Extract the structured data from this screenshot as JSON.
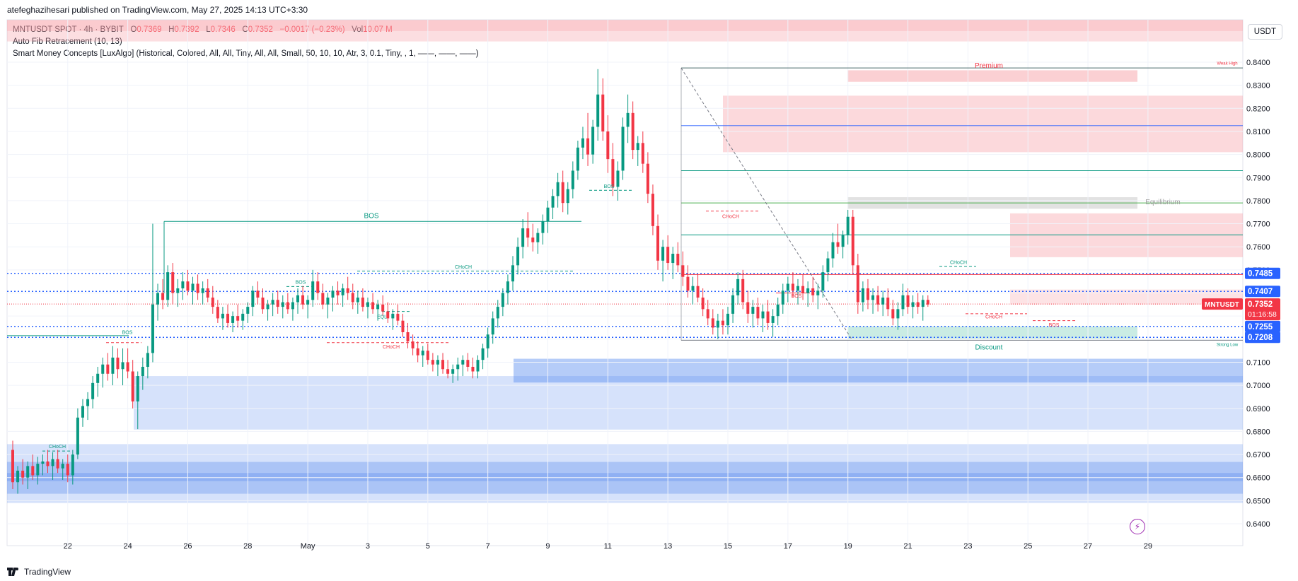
{
  "header": {
    "published": "atefeghazihesari published on TradingView.com, May 27, 2025 14:13 UTC+3:30"
  },
  "legend": {
    "symbol": "MNTUSDT SPOT · 4h · BYBIT",
    "o_label": "O",
    "o_value": "0.7369",
    "h_label": "H",
    "h_value": "0.7392",
    "l_label": "L",
    "l_value": "0.7346",
    "c_label": "C",
    "c_value": "0.7352",
    "change": "−0.0017 (−0.23%)",
    "vol_label": "Vol",
    "vol_value": "10.07 M",
    "indicator1": "Auto Fib Retracement (10, 13)",
    "indicator2": "Smart Money Concepts [LuxAlgo] (Historical, Colored, All, All, Tiny, All, All, Small, 50, 10, 10, Atr, 3, 0.1, Tiny, , 1, ——, ——, ——)"
  },
  "currency": "USDT",
  "footer": {
    "brand": "TradingView"
  },
  "colors": {
    "up": "#089981",
    "down": "#f23645",
    "blue_line": "#2962ff",
    "zone_blue": "#5b8def",
    "zone_red": "#f7a1a8",
    "zone_green": "#a7e0d2",
    "zone_grey": "#cfcfcf"
  },
  "chart_data": {
    "type": "candlestick",
    "ylim": [
      0.636,
      0.845
    ],
    "y_ticks": [
      "0.8400",
      "0.8300",
      "0.8200",
      "0.8100",
      "0.8000",
      "0.7900",
      "0.7800",
      "0.7700",
      "0.7600",
      "0.7500",
      "0.7400",
      "0.7300",
      "0.7200",
      "0.7100",
      "0.7000",
      "0.6900",
      "0.6800",
      "0.6700",
      "0.6600",
      "0.6500",
      "0.6400"
    ],
    "x_ticks": [
      {
        "label": "22",
        "idx": 11
      },
      {
        "label": "24",
        "idx": 23
      },
      {
        "label": "26",
        "idx": 35
      },
      {
        "label": "28",
        "idx": 47
      },
      {
        "label": "May",
        "idx": 59
      },
      {
        "label": "3",
        "idx": 71
      },
      {
        "label": "5",
        "idx": 83
      },
      {
        "label": "7",
        "idx": 95
      },
      {
        "label": "9",
        "idx": 107
      },
      {
        "label": "11",
        "idx": 119
      },
      {
        "label": "13",
        "idx": 131
      },
      {
        "label": "15",
        "idx": 143
      },
      {
        "label": "17",
        "idx": 155
      },
      {
        "label": "19",
        "idx": 167
      },
      {
        "label": "21",
        "idx": 179
      },
      {
        "label": "23",
        "idx": 191
      },
      {
        "label": "25",
        "idx": 203
      },
      {
        "label": "27",
        "idx": 215
      },
      {
        "label": "29",
        "idx": 227
      }
    ],
    "price_tags": [
      {
        "value": "0.7485",
        "price": 0.7485,
        "bg": "#2962ff"
      },
      {
        "value": "0.7407",
        "price": 0.7407,
        "bg": "#2962ff"
      },
      {
        "value": "0.7255",
        "price": 0.7255,
        "bg": "#2962ff"
      },
      {
        "value": "0.7208",
        "price": 0.7208,
        "bg": "#2962ff"
      }
    ],
    "last": {
      "symbol": "MNTUSDT",
      "value": "0.7352",
      "countdown": "01:16:58",
      "price": 0.7352
    },
    "labels": {
      "bos": "BOS",
      "choch": "CHoCH",
      "eql": "EQL",
      "premium": "Premium",
      "equilibrium": "Equilibrium",
      "discount": "Discount",
      "weak_high": "Weak High",
      "strong_low": "Strong Low"
    },
    "candles": [
      [
        0.672,
        0.676,
        0.655,
        0.658
      ],
      [
        0.658,
        0.665,
        0.653,
        0.663
      ],
      [
        0.663,
        0.668,
        0.657,
        0.66
      ],
      [
        0.66,
        0.667,
        0.655,
        0.665
      ],
      [
        0.665,
        0.67,
        0.659,
        0.661
      ],
      [
        0.661,
        0.669,
        0.657,
        0.666
      ],
      [
        0.666,
        0.67,
        0.661,
        0.667
      ],
      [
        0.667,
        0.672,
        0.662,
        0.665
      ],
      [
        0.665,
        0.671,
        0.659,
        0.668
      ],
      [
        0.668,
        0.672,
        0.662,
        0.664
      ],
      [
        0.664,
        0.668,
        0.659,
        0.666
      ],
      [
        0.666,
        0.67,
        0.658,
        0.661
      ],
      [
        0.661,
        0.672,
        0.657,
        0.67
      ],
      [
        0.67,
        0.69,
        0.668,
        0.686
      ],
      [
        0.686,
        0.694,
        0.682,
        0.691
      ],
      [
        0.691,
        0.697,
        0.685,
        0.694
      ],
      [
        0.694,
        0.704,
        0.69,
        0.701
      ],
      [
        0.701,
        0.708,
        0.695,
        0.705
      ],
      [
        0.705,
        0.712,
        0.699,
        0.709
      ],
      [
        0.709,
        0.714,
        0.702,
        0.705
      ],
      [
        0.705,
        0.717,
        0.7,
        0.712
      ],
      [
        0.712,
        0.716,
        0.703,
        0.707
      ],
      [
        0.707,
        0.716,
        0.7,
        0.71
      ],
      [
        0.71,
        0.716,
        0.703,
        0.706
      ],
      [
        0.706,
        0.711,
        0.69,
        0.693
      ],
      [
        0.693,
        0.706,
        0.681,
        0.704
      ],
      [
        0.704,
        0.712,
        0.698,
        0.708
      ],
      [
        0.708,
        0.717,
        0.703,
        0.714
      ],
      [
        0.714,
        0.77,
        0.71,
        0.735
      ],
      [
        0.735,
        0.744,
        0.728,
        0.74
      ],
      [
        0.74,
        0.746,
        0.733,
        0.737
      ],
      [
        0.737,
        0.752,
        0.734,
        0.749
      ],
      [
        0.749,
        0.753,
        0.735,
        0.74
      ],
      [
        0.74,
        0.746,
        0.734,
        0.742
      ],
      [
        0.742,
        0.749,
        0.737,
        0.745
      ],
      [
        0.745,
        0.75,
        0.739,
        0.741
      ],
      [
        0.741,
        0.747,
        0.735,
        0.744
      ],
      [
        0.744,
        0.748,
        0.737,
        0.74
      ],
      [
        0.74,
        0.745,
        0.735,
        0.742
      ],
      [
        0.742,
        0.746,
        0.736,
        0.738
      ],
      [
        0.738,
        0.743,
        0.731,
        0.734
      ],
      [
        0.734,
        0.737,
        0.727,
        0.729
      ],
      [
        0.729,
        0.734,
        0.724,
        0.731
      ],
      [
        0.731,
        0.735,
        0.725,
        0.727
      ],
      [
        0.727,
        0.732,
        0.723,
        0.73
      ],
      [
        0.73,
        0.735,
        0.725,
        0.728
      ],
      [
        0.728,
        0.733,
        0.724,
        0.731
      ],
      [
        0.731,
        0.736,
        0.727,
        0.734
      ],
      [
        0.734,
        0.743,
        0.73,
        0.741
      ],
      [
        0.741,
        0.745,
        0.735,
        0.738
      ],
      [
        0.738,
        0.742,
        0.731,
        0.733
      ],
      [
        0.733,
        0.737,
        0.728,
        0.735
      ],
      [
        0.735,
        0.74,
        0.73,
        0.737
      ],
      [
        0.737,
        0.741,
        0.731,
        0.734
      ],
      [
        0.734,
        0.739,
        0.729,
        0.736
      ],
      [
        0.736,
        0.74,
        0.731,
        0.733
      ],
      [
        0.733,
        0.738,
        0.728,
        0.736
      ],
      [
        0.736,
        0.742,
        0.731,
        0.739
      ],
      [
        0.739,
        0.743,
        0.733,
        0.735
      ],
      [
        0.735,
        0.739,
        0.729,
        0.737
      ],
      [
        0.737,
        0.75,
        0.734,
        0.745
      ],
      [
        0.745,
        0.749,
        0.737,
        0.74
      ],
      [
        0.74,
        0.744,
        0.733,
        0.735
      ],
      [
        0.735,
        0.74,
        0.729,
        0.738
      ],
      [
        0.738,
        0.743,
        0.732,
        0.741
      ],
      [
        0.741,
        0.745,
        0.735,
        0.739
      ],
      [
        0.739,
        0.744,
        0.734,
        0.742
      ],
      [
        0.742,
        0.747,
        0.737,
        0.74
      ],
      [
        0.74,
        0.744,
        0.733,
        0.736
      ],
      [
        0.736,
        0.741,
        0.731,
        0.738
      ],
      [
        0.738,
        0.742,
        0.732,
        0.734
      ],
      [
        0.734,
        0.738,
        0.729,
        0.736
      ],
      [
        0.736,
        0.74,
        0.731,
        0.733
      ],
      [
        0.733,
        0.737,
        0.728,
        0.735
      ],
      [
        0.735,
        0.739,
        0.73,
        0.732
      ],
      [
        0.732,
        0.736,
        0.727,
        0.729
      ],
      [
        0.729,
        0.733,
        0.724,
        0.731
      ],
      [
        0.731,
        0.735,
        0.726,
        0.728
      ],
      [
        0.728,
        0.731,
        0.721,
        0.723
      ],
      [
        0.723,
        0.727,
        0.716,
        0.719
      ],
      [
        0.719,
        0.722,
        0.713,
        0.716
      ],
      [
        0.716,
        0.719,
        0.71,
        0.713
      ],
      [
        0.713,
        0.717,
        0.708,
        0.715
      ],
      [
        0.715,
        0.718,
        0.709,
        0.711
      ],
      [
        0.711,
        0.714,
        0.706,
        0.709
      ],
      [
        0.709,
        0.713,
        0.704,
        0.711
      ],
      [
        0.711,
        0.714,
        0.705,
        0.707
      ],
      [
        0.707,
        0.711,
        0.703,
        0.705
      ],
      [
        0.705,
        0.709,
        0.701,
        0.707
      ],
      [
        0.707,
        0.712,
        0.702,
        0.709
      ],
      [
        0.709,
        0.713,
        0.704,
        0.711
      ],
      [
        0.711,
        0.714,
        0.706,
        0.708
      ],
      [
        0.708,
        0.712,
        0.703,
        0.706
      ],
      [
        0.706,
        0.713,
        0.703,
        0.711
      ],
      [
        0.711,
        0.718,
        0.707,
        0.716
      ],
      [
        0.716,
        0.725,
        0.712,
        0.722
      ],
      [
        0.722,
        0.732,
        0.718,
        0.729
      ],
      [
        0.729,
        0.737,
        0.725,
        0.734
      ],
      [
        0.734,
        0.742,
        0.73,
        0.74
      ],
      [
        0.74,
        0.748,
        0.735,
        0.745
      ],
      [
        0.745,
        0.756,
        0.741,
        0.752
      ],
      [
        0.752,
        0.764,
        0.748,
        0.76
      ],
      [
        0.76,
        0.772,
        0.755,
        0.768
      ],
      [
        0.768,
        0.775,
        0.76,
        0.764
      ],
      [
        0.764,
        0.77,
        0.758,
        0.762
      ],
      [
        0.762,
        0.768,
        0.757,
        0.766
      ],
      [
        0.766,
        0.774,
        0.761,
        0.771
      ],
      [
        0.771,
        0.78,
        0.766,
        0.777
      ],
      [
        0.777,
        0.785,
        0.772,
        0.782
      ],
      [
        0.782,
        0.792,
        0.777,
        0.788
      ],
      [
        0.788,
        0.793,
        0.775,
        0.779
      ],
      [
        0.779,
        0.788,
        0.774,
        0.785
      ],
      [
        0.785,
        0.797,
        0.781,
        0.793
      ],
      [
        0.793,
        0.806,
        0.789,
        0.803
      ],
      [
        0.803,
        0.812,
        0.798,
        0.807
      ],
      [
        0.807,
        0.818,
        0.795,
        0.8
      ],
      [
        0.8,
        0.815,
        0.796,
        0.812
      ],
      [
        0.812,
        0.837,
        0.806,
        0.826
      ],
      [
        0.826,
        0.833,
        0.806,
        0.81
      ],
      [
        0.81,
        0.817,
        0.792,
        0.798
      ],
      [
        0.798,
        0.805,
        0.782,
        0.786
      ],
      [
        0.786,
        0.797,
        0.78,
        0.793
      ],
      [
        0.793,
        0.816,
        0.789,
        0.812
      ],
      [
        0.812,
        0.826,
        0.805,
        0.818
      ],
      [
        0.818,
        0.823,
        0.798,
        0.802
      ],
      [
        0.802,
        0.808,
        0.795,
        0.805
      ],
      [
        0.805,
        0.81,
        0.792,
        0.796
      ],
      [
        0.796,
        0.801,
        0.779,
        0.783
      ],
      [
        0.783,
        0.787,
        0.765,
        0.769
      ],
      [
        0.769,
        0.774,
        0.75,
        0.754
      ],
      [
        0.754,
        0.763,
        0.745,
        0.76
      ],
      [
        0.76,
        0.765,
        0.75,
        0.753
      ],
      [
        0.753,
        0.76,
        0.746,
        0.757
      ],
      [
        0.757,
        0.762,
        0.749,
        0.752
      ],
      [
        0.752,
        0.758,
        0.743,
        0.747
      ],
      [
        0.747,
        0.752,
        0.738,
        0.741
      ],
      [
        0.741,
        0.747,
        0.735,
        0.743
      ],
      [
        0.743,
        0.748,
        0.736,
        0.738
      ],
      [
        0.738,
        0.742,
        0.73,
        0.733
      ],
      [
        0.733,
        0.737,
        0.726,
        0.729
      ],
      [
        0.729,
        0.733,
        0.722,
        0.725
      ],
      [
        0.725,
        0.731,
        0.72,
        0.728
      ],
      [
        0.728,
        0.733,
        0.722,
        0.726
      ],
      [
        0.726,
        0.734,
        0.722,
        0.731
      ],
      [
        0.731,
        0.742,
        0.727,
        0.739
      ],
      [
        0.739,
        0.749,
        0.735,
        0.746
      ],
      [
        0.746,
        0.75,
        0.733,
        0.736
      ],
      [
        0.736,
        0.741,
        0.727,
        0.731
      ],
      [
        0.731,
        0.737,
        0.725,
        0.734
      ],
      [
        0.734,
        0.738,
        0.726,
        0.729
      ],
      [
        0.729,
        0.735,
        0.723,
        0.732
      ],
      [
        0.732,
        0.737,
        0.724,
        0.727
      ],
      [
        0.727,
        0.733,
        0.721,
        0.73
      ],
      [
        0.73,
        0.738,
        0.726,
        0.735
      ],
      [
        0.735,
        0.744,
        0.731,
        0.741
      ],
      [
        0.741,
        0.747,
        0.736,
        0.744
      ],
      [
        0.744,
        0.749,
        0.738,
        0.741
      ],
      [
        0.741,
        0.746,
        0.735,
        0.743
      ],
      [
        0.743,
        0.748,
        0.737,
        0.74
      ],
      [
        0.74,
        0.745,
        0.734,
        0.742
      ],
      [
        0.742,
        0.747,
        0.736,
        0.739
      ],
      [
        0.739,
        0.744,
        0.733,
        0.741
      ],
      [
        0.741,
        0.752,
        0.738,
        0.749
      ],
      [
        0.749,
        0.758,
        0.745,
        0.755
      ],
      [
        0.755,
        0.766,
        0.751,
        0.762
      ],
      [
        0.762,
        0.77,
        0.757,
        0.76
      ],
      [
        0.76,
        0.767,
        0.755,
        0.765
      ],
      [
        0.765,
        0.776,
        0.761,
        0.773
      ],
      [
        0.773,
        0.776,
        0.748,
        0.752
      ],
      [
        0.752,
        0.757,
        0.731,
        0.736
      ],
      [
        0.736,
        0.745,
        0.732,
        0.742
      ],
      [
        0.742,
        0.746,
        0.733,
        0.737
      ],
      [
        0.737,
        0.742,
        0.731,
        0.739
      ],
      [
        0.739,
        0.743,
        0.732,
        0.735
      ],
      [
        0.735,
        0.741,
        0.73,
        0.738
      ],
      [
        0.738,
        0.742,
        0.73,
        0.733
      ],
      [
        0.733,
        0.737,
        0.726,
        0.729
      ],
      [
        0.729,
        0.736,
        0.724,
        0.733
      ],
      [
        0.733,
        0.744,
        0.73,
        0.739
      ],
      [
        0.739,
        0.742,
        0.731,
        0.734
      ],
      [
        0.734,
        0.739,
        0.729,
        0.736
      ],
      [
        0.736,
        0.74,
        0.731,
        0.734
      ],
      [
        0.734,
        0.739,
        0.728,
        0.737
      ],
      [
        0.737,
        0.739,
        0.734,
        0.735
      ]
    ]
  }
}
